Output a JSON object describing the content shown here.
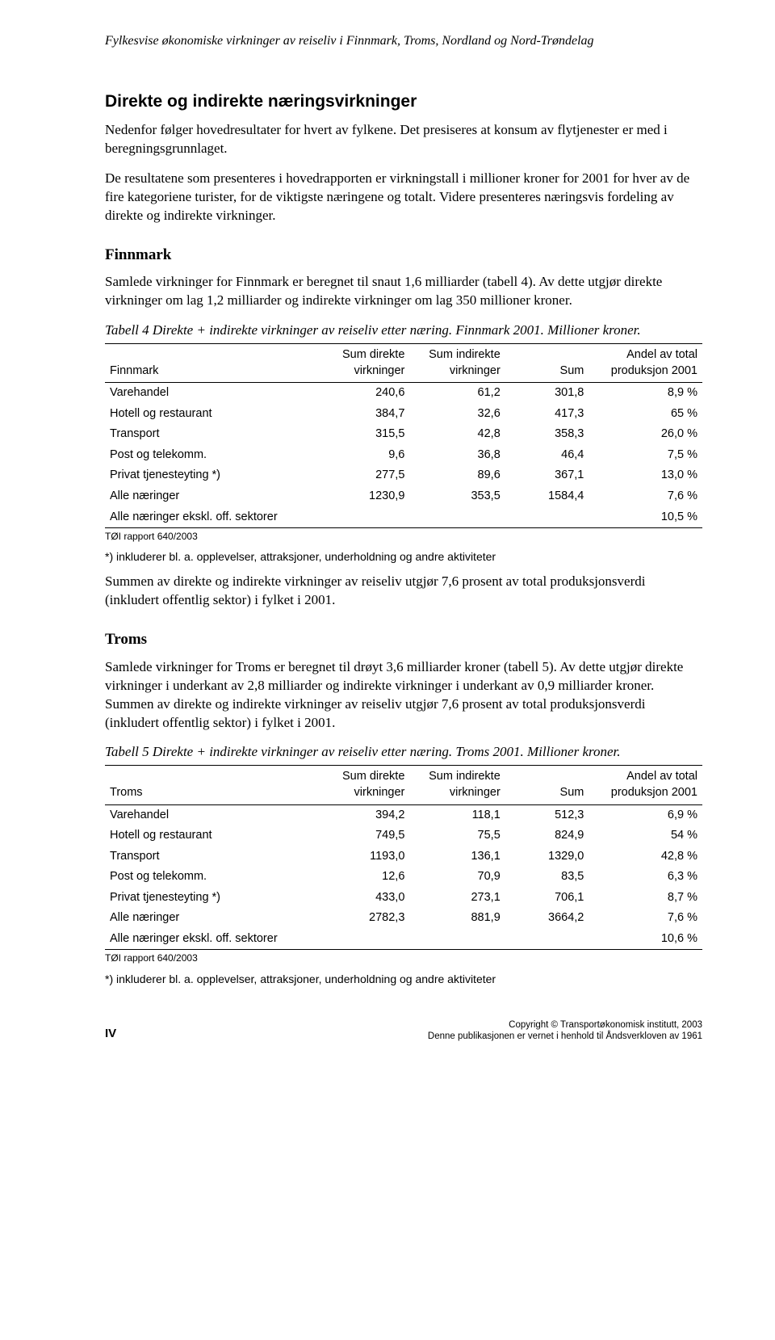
{
  "header": {
    "title": "Fylkesvise økonomiske virkninger av reiseliv i Finnmark, Troms, Nordland og Nord-Trøndelag"
  },
  "section1": {
    "heading": "Direkte og indirekte næringsvirkninger",
    "p1": "Nedenfor følger hovedresultater for hvert av fylkene. Det presiseres at konsum av flytjenester er med i beregningsgrunnlaget.",
    "p2": "De resultatene som presenteres i hovedrapporten er virkningstall i millioner kroner for 2001 for hver av de fire kategoriene turister, for de viktigste næringene og totalt. Videre presenteres næringsvis fordeling av direkte og indirekte virkninger."
  },
  "finnmark": {
    "heading": "Finnmark",
    "p1": "Samlede virkninger for Finnmark er beregnet til snaut 1,6 milliarder (tabell 4). Av dette utgjør direkte virkninger om lag 1,2 milliarder og indirekte virkninger om lag 350 millioner kroner.",
    "caption": "Tabell 4 Direkte + indirekte virkninger av reiseliv  etter  næring. Finnmark 2001. Millioner kroner.",
    "table": {
      "col0": "Finnmark",
      "col1_l1": "Sum direkte",
      "col1_l2": "virkninger",
      "col2_l1": "Sum indirekte",
      "col2_l2": "virkninger",
      "col3": "Sum",
      "col4_l1": "Andel av total",
      "col4_l2": "produksjon 2001",
      "rows": [
        {
          "label": "Varehandel",
          "c1": "240,6",
          "c2": "61,2",
          "c3": "301,8",
          "c4": "8,9 %"
        },
        {
          "label": "Hotell og restaurant",
          "c1": "384,7",
          "c2": "32,6",
          "c3": "417,3",
          "c4": "65 %"
        },
        {
          "label": "Transport",
          "c1": "315,5",
          "c2": "42,8",
          "c3": "358,3",
          "c4": "26,0 %"
        },
        {
          "label": "Post og telekomm.",
          "c1": "9,6",
          "c2": "36,8",
          "c3": "46,4",
          "c4": "7,5 %"
        },
        {
          "label": "Privat tjenesteyting *)",
          "c1": "277,5",
          "c2": "89,6",
          "c3": "367,1",
          "c4": "13,0 %"
        },
        {
          "label": "Alle næringer",
          "c1": "1230,9",
          "c2": "353,5",
          "c3": "1584,4",
          "c4": "7,6 %"
        },
        {
          "label": "Alle næringer ekskl. off. sektorer",
          "c1": "",
          "c2": "",
          "c3": "",
          "c4": "10,5 %"
        }
      ]
    },
    "source": "TØI rapport 640/2003",
    "footnote": "*) inkluderer bl. a. opplevelser, attraksjoner, underholdning og andre aktiviteter",
    "p2": "Summen av direkte og indirekte virkninger  av reiseliv utgjør 7,6 prosent av total produksjonsverdi (inkludert offentlig sektor) i fylket i 2001."
  },
  "troms": {
    "heading": "Troms",
    "p1": "Samlede virkninger for Troms er beregnet til drøyt 3,6 milliarder kroner (tabell 5). Av dette utgjør direkte virkninger i underkant av 2,8 milliarder og indirekte virkninger i underkant av 0,9 milliarder kroner. Summen av direkte og indirekte virkninger  av reiseliv utgjør 7,6 prosent av total produksjonsverdi (inkludert offentlig sektor) i fylket i 2001.",
    "caption": "Tabell 5 Direkte + indirekte virkninger av reiseliv etter  næring. Troms 2001. Millioner kroner.",
    "table": {
      "col0": "Troms",
      "col1_l1": "Sum direkte",
      "col1_l2": "virkninger",
      "col2_l1": "Sum indirekte",
      "col2_l2": "virkninger",
      "col3": "Sum",
      "col4_l1": "Andel av total",
      "col4_l2": "produksjon 2001",
      "rows": [
        {
          "label": "Varehandel",
          "c1": "394,2",
          "c2": "118,1",
          "c3": "512,3",
          "c4": "6,9 %"
        },
        {
          "label": "Hotell og restaurant",
          "c1": "749,5",
          "c2": "75,5",
          "c3": "824,9",
          "c4": "54 %"
        },
        {
          "label": "Transport",
          "c1": "1193,0",
          "c2": "136,1",
          "c3": "1329,0",
          "c4": "42,8 %"
        },
        {
          "label": "Post og telekomm.",
          "c1": "12,6",
          "c2": "70,9",
          "c3": "83,5",
          "c4": "6,3 %"
        },
        {
          "label": "Privat tjenesteyting *)",
          "c1": "433,0",
          "c2": "273,1",
          "c3": "706,1",
          "c4": "8,7 %"
        },
        {
          "label": "Alle næringer",
          "c1": "2782,3",
          "c2": "881,9",
          "c3": "3664,2",
          "c4": "7,6 %"
        },
        {
          "label": "Alle næringer ekskl. off. sektorer",
          "c1": "",
          "c2": "",
          "c3": "",
          "c4": "10,6 %"
        }
      ]
    },
    "source": "TØI rapport 640/2003",
    "footnote": "*) inkluderer bl. a. opplevelser, attraksjoner, underholdning og andre aktiviteter"
  },
  "footer": {
    "page": "IV",
    "copyright": "Copyright © Transportøkonomisk institutt, 2003",
    "notice": "Denne publikasjonen er vernet i henhold til Åndsverkloven av 1961"
  }
}
